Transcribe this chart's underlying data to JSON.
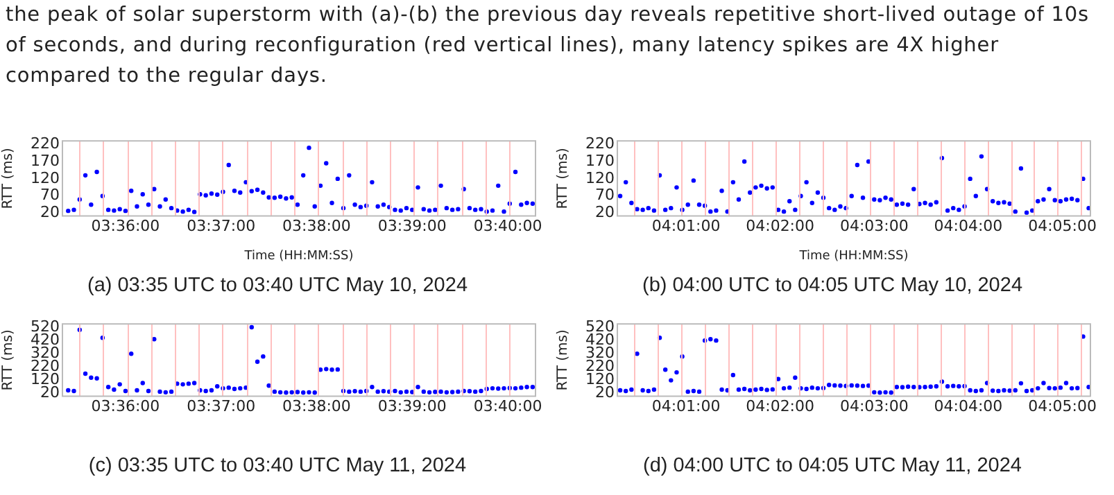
{
  "chart_data": [
    {
      "type": "scatter",
      "title": "(a) 03:35 UTC to 03:40 UTC May 10, 2024",
      "xlabel": "Time (HH:MM:SS)",
      "ylabel": "RTT (ms)",
      "marker": "circle",
      "annotations": [
        "the peak of solar superstorm with (a)-(b) the previous day reveals repetitive short-lived outage of 10s of seconds, and during reconfiguration (red vertical lines), many latency spikes are 4X higher compared to the regular days."
      ],
      "xlim": [
        3.589,
        3.6715
      ],
      "xticks": [
        {
          "value": 3.6,
          "label": "03:36:00"
        },
        {
          "value": 3.61667,
          "label": "03:37:00"
        },
        {
          "value": 3.63333,
          "label": "03:38:00"
        },
        {
          "value": 3.65,
          "label": "03:39:00"
        },
        {
          "value": 3.66667,
          "label": "03:40:00"
        }
      ],
      "ylim": [
        12,
        230
      ],
      "yticks": [
        20,
        70,
        120,
        170,
        220
      ],
      "ref_lines": [
        {
          "axis": "x",
          "value": 3.59194,
          "color": "#ffc0c0"
        },
        {
          "axis": "x",
          "value": 3.59611,
          "color": "#ffc0c0"
        },
        {
          "axis": "x",
          "value": 3.60028,
          "color": "#ffc0c0"
        },
        {
          "axis": "x",
          "value": 3.60444,
          "color": "#ffc0c0"
        },
        {
          "axis": "x",
          "value": 3.60861,
          "color": "#ffc0c0"
        },
        {
          "axis": "x",
          "value": 3.61278,
          "color": "#ffc0c0"
        },
        {
          "axis": "x",
          "value": 3.61694,
          "color": "#ffc0c0"
        },
        {
          "axis": "x",
          "value": 3.62111,
          "color": "#ffc0c0"
        },
        {
          "axis": "x",
          "value": 3.62528,
          "color": "#ffc0c0"
        },
        {
          "axis": "x",
          "value": 3.62944,
          "color": "#ffc0c0"
        },
        {
          "axis": "x",
          "value": 3.63361,
          "color": "#ffc0c0"
        },
        {
          "axis": "x",
          "value": 3.63778,
          "color": "#ffc0c0"
        },
        {
          "axis": "x",
          "value": 3.64194,
          "color": "#ffc0c0"
        },
        {
          "axis": "x",
          "value": 3.64611,
          "color": "#ffc0c0"
        },
        {
          "axis": "x",
          "value": 3.65028,
          "color": "#ffc0c0"
        },
        {
          "axis": "x",
          "value": 3.65444,
          "color": "#ffc0c0"
        },
        {
          "axis": "x",
          "value": 3.65861,
          "color": "#ffc0c0"
        },
        {
          "axis": "x",
          "value": 3.66278,
          "color": "#ffc0c0"
        },
        {
          "axis": "x",
          "value": 3.66694,
          "color": "#ffc0c0"
        }
      ],
      "series": [
        {
          "color": "#0000ff",
          "x": [
            3.59,
            3.591,
            3.592,
            3.593,
            3.594,
            3.595,
            3.596,
            3.597,
            3.598,
            3.599,
            3.6,
            3.601,
            3.602,
            3.603,
            3.604,
            3.605,
            3.606,
            3.607,
            3.608,
            3.609,
            3.61,
            3.611,
            3.612,
            3.613,
            3.614,
            3.615,
            3.616,
            3.617,
            3.618,
            3.619,
            3.62,
            3.621,
            3.622,
            3.623,
            3.624,
            3.625,
            3.626,
            3.627,
            3.628,
            3.629,
            3.63,
            3.631,
            3.632,
            3.633,
            3.634,
            3.635,
            3.636,
            3.637,
            3.638,
            3.639,
            3.64,
            3.641,
            3.642,
            3.643,
            3.644,
            3.645,
            3.646,
            3.647,
            3.648,
            3.649,
            3.65,
            3.651,
            3.652,
            3.653,
            3.654,
            3.655,
            3.656,
            3.657,
            3.658,
            3.659,
            3.66,
            3.661,
            3.662,
            3.663,
            3.664,
            3.665,
            3.666,
            3.667,
            3.668,
            3.669,
            3.67,
            3.671
          ],
          "values": [
            27,
            30,
            60,
            130,
            45,
            140,
            70,
            30,
            28,
            32,
            27,
            85,
            40,
            75,
            45,
            90,
            40,
            60,
            35,
            28,
            25,
            30,
            24,
            75,
            72,
            77,
            74,
            82,
            160,
            85,
            80,
            110,
            84,
            88,
            80,
            66,
            65,
            68,
            63,
            66,
            45,
            130,
            210,
            40,
            100,
            165,
            50,
            120,
            35,
            130,
            45,
            38,
            42,
            110,
            40,
            45,
            38,
            30,
            28,
            35,
            30,
            95,
            32,
            28,
            30,
            100,
            35,
            30,
            32,
            90,
            35,
            30,
            32,
            25,
            28,
            100,
            25,
            48,
            140,
            45,
            50,
            48
          ]
        }
      ]
    },
    {
      "type": "scatter",
      "title": "(b) 04:00 UTC to 04:05 UTC May 10, 2024",
      "xlabel": "Time (HH:MM:SS)",
      "ylabel": "RTT (ms)",
      "marker": "circle",
      "xlim": [
        4.0045,
        4.0883
      ],
      "xticks": [
        {
          "value": 4.01667,
          "label": "04:01:00"
        },
        {
          "value": 4.03333,
          "label": "04:02:00"
        },
        {
          "value": 4.05,
          "label": "04:03:00"
        },
        {
          "value": 4.06667,
          "label": "04:04:00"
        },
        {
          "value": 4.08333,
          "label": "04:05:00"
        }
      ],
      "ylim": [
        12,
        230
      ],
      "yticks": [
        20,
        70,
        120,
        170,
        220
      ],
      "ref_lines": [
        {
          "axis": "x",
          "value": 4.0075,
          "color": "#ffc0c0"
        },
        {
          "axis": "x",
          "value": 4.01167,
          "color": "#ffc0c0"
        },
        {
          "axis": "x",
          "value": 4.01583,
          "color": "#ffc0c0"
        },
        {
          "axis": "x",
          "value": 4.02,
          "color": "#ffc0c0"
        },
        {
          "axis": "x",
          "value": 4.02417,
          "color": "#ffc0c0"
        },
        {
          "axis": "x",
          "value": 4.02833,
          "color": "#ffc0c0"
        },
        {
          "axis": "x",
          "value": 4.0325,
          "color": "#ffc0c0"
        },
        {
          "axis": "x",
          "value": 4.03667,
          "color": "#ffc0c0"
        },
        {
          "axis": "x",
          "value": 4.04083,
          "color": "#ffc0c0"
        },
        {
          "axis": "x",
          "value": 4.045,
          "color": "#ffc0c0"
        },
        {
          "axis": "x",
          "value": 4.04917,
          "color": "#ffc0c0"
        },
        {
          "axis": "x",
          "value": 4.05333,
          "color": "#ffc0c0"
        },
        {
          "axis": "x",
          "value": 4.0575,
          "color": "#ffc0c0"
        },
        {
          "axis": "x",
          "value": 4.06167,
          "color": "#ffc0c0"
        },
        {
          "axis": "x",
          "value": 4.06583,
          "color": "#ffc0c0"
        },
        {
          "axis": "x",
          "value": 4.07,
          "color": "#ffc0c0"
        },
        {
          "axis": "x",
          "value": 4.07417,
          "color": "#ffc0c0"
        },
        {
          "axis": "x",
          "value": 4.07833,
          "color": "#ffc0c0"
        },
        {
          "axis": "x",
          "value": 4.0825,
          "color": "#ffc0c0"
        },
        {
          "axis": "x",
          "value": 4.08667,
          "color": "#ffc0c0"
        }
      ],
      "series": [
        {
          "color": "#0000ff",
          "x": [
            4.005,
            4.006,
            4.007,
            4.008,
            4.009,
            4.01,
            4.011,
            4.012,
            4.013,
            4.014,
            4.015,
            4.016,
            4.017,
            4.018,
            4.019,
            4.02,
            4.021,
            4.022,
            4.023,
            4.024,
            4.025,
            4.026,
            4.027,
            4.028,
            4.029,
            4.03,
            4.031,
            4.032,
            4.033,
            4.034,
            4.035,
            4.036,
            4.037,
            4.038,
            4.039,
            4.04,
            4.041,
            4.042,
            4.043,
            4.044,
            4.045,
            4.046,
            4.047,
            4.048,
            4.049,
            4.05,
            4.051,
            4.052,
            4.053,
            4.054,
            4.055,
            4.056,
            4.057,
            4.058,
            4.059,
            4.06,
            4.061,
            4.062,
            4.063,
            4.064,
            4.065,
            4.066,
            4.067,
            4.068,
            4.069,
            4.07,
            4.071,
            4.072,
            4.073,
            4.074,
            4.075,
            4.076,
            4.077,
            4.078,
            4.079,
            4.08,
            4.081,
            4.082,
            4.083,
            4.084,
            4.085,
            4.086,
            4.087,
            4.088
          ],
          "values": [
            70,
            110,
            50,
            32,
            30,
            35,
            28,
            130,
            30,
            35,
            95,
            30,
            45,
            115,
            45,
            42,
            25,
            28,
            85,
            25,
            110,
            60,
            170,
            80,
            95,
            100,
            92,
            95,
            30,
            25,
            55,
            30,
            70,
            110,
            50,
            80,
            65,
            35,
            30,
            40,
            35,
            70,
            160,
            65,
            170,
            60,
            58,
            65,
            60,
            45,
            48,
            45,
            90,
            47,
            50,
            45,
            52,
            180,
            28,
            35,
            30,
            40,
            120,
            70,
            185,
            90,
            55,
            50,
            52,
            48,
            25,
            150,
            22,
            28,
            55,
            60,
            90,
            58,
            55,
            60,
            62,
            58,
            120,
            35
          ]
        }
      ]
    },
    {
      "type": "scatter",
      "title": "(c) 03:35 UTC to 03:40 UTC May 11, 2024",
      "ylabel": "RTT (ms)",
      "marker": "circle",
      "xlim": [
        3.589,
        3.6715
      ],
      "xticks": [
        {
          "value": 3.6,
          "label": "03:36:00"
        },
        {
          "value": 3.61667,
          "label": "03:37:00"
        },
        {
          "value": 3.63333,
          "label": "03:38:00"
        },
        {
          "value": 3.65,
          "label": "03:39:00"
        },
        {
          "value": 3.66667,
          "label": "03:40:00"
        }
      ],
      "ylim": [
        0,
        545
      ],
      "yticks": [
        20,
        120,
        220,
        320,
        420,
        520
      ],
      "ref_lines": [
        {
          "axis": "x",
          "value": 3.59194,
          "color": "#ffc0c0"
        },
        {
          "axis": "x",
          "value": 3.59611,
          "color": "#ffc0c0"
        },
        {
          "axis": "x",
          "value": 3.60028,
          "color": "#ffc0c0"
        },
        {
          "axis": "x",
          "value": 3.60444,
          "color": "#ffc0c0"
        },
        {
          "axis": "x",
          "value": 3.60861,
          "color": "#ffc0c0"
        },
        {
          "axis": "x",
          "value": 3.61278,
          "color": "#ffc0c0"
        },
        {
          "axis": "x",
          "value": 3.61694,
          "color": "#ffc0c0"
        },
        {
          "axis": "x",
          "value": 3.62111,
          "color": "#ffc0c0"
        },
        {
          "axis": "x",
          "value": 3.62528,
          "color": "#ffc0c0"
        },
        {
          "axis": "x",
          "value": 3.62944,
          "color": "#ffc0c0"
        },
        {
          "axis": "x",
          "value": 3.63361,
          "color": "#ffc0c0"
        },
        {
          "axis": "x",
          "value": 3.63778,
          "color": "#ffc0c0"
        },
        {
          "axis": "x",
          "value": 3.64194,
          "color": "#ffc0c0"
        },
        {
          "axis": "x",
          "value": 3.64611,
          "color": "#ffc0c0"
        },
        {
          "axis": "x",
          "value": 3.65028,
          "color": "#ffc0c0"
        },
        {
          "axis": "x",
          "value": 3.65444,
          "color": "#ffc0c0"
        },
        {
          "axis": "x",
          "value": 3.65861,
          "color": "#ffc0c0"
        },
        {
          "axis": "x",
          "value": 3.66278,
          "color": "#ffc0c0"
        },
        {
          "axis": "x",
          "value": 3.66694,
          "color": "#ffc0c0"
        }
      ],
      "series": [
        {
          "color": "#0000ff",
          "x": [
            3.59,
            3.591,
            3.592,
            3.593,
            3.594,
            3.595,
            3.596,
            3.597,
            3.598,
            3.599,
            3.6,
            3.601,
            3.602,
            3.603,
            3.604,
            3.605,
            3.606,
            3.607,
            3.608,
            3.609,
            3.61,
            3.611,
            3.612,
            3.613,
            3.614,
            3.615,
            3.616,
            3.617,
            3.618,
            3.619,
            3.62,
            3.621,
            3.622,
            3.623,
            3.624,
            3.625,
            3.626,
            3.627,
            3.628,
            3.629,
            3.63,
            3.631,
            3.632,
            3.633,
            3.634,
            3.635,
            3.636,
            3.637,
            3.638,
            3.639,
            3.64,
            3.641,
            3.642,
            3.643,
            3.644,
            3.645,
            3.646,
            3.647,
            3.648,
            3.649,
            3.65,
            3.651,
            3.652,
            3.653,
            3.654,
            3.655,
            3.656,
            3.657,
            3.658,
            3.659,
            3.66,
            3.661,
            3.662,
            3.663,
            3.664,
            3.665,
            3.666,
            3.667,
            3.668,
            3.669,
            3.67,
            3.671
          ],
          "values": [
            45,
            40,
            500,
            170,
            140,
            135,
            440,
            70,
            50,
            90,
            40,
            320,
            45,
            100,
            40,
            430,
            35,
            30,
            35,
            95,
            90,
            95,
            100,
            45,
            40,
            45,
            75,
            60,
            65,
            55,
            60,
            65,
            520,
            260,
            300,
            80,
            35,
            30,
            28,
            30,
            32,
            28,
            30,
            28,
            200,
            205,
            200,
            202,
            40,
            35,
            38,
            35,
            40,
            70,
            35,
            38,
            35,
            40,
            30,
            35,
            32,
            70,
            35,
            30,
            33,
            35,
            30,
            32,
            35,
            40,
            38,
            35,
            40,
            55,
            60,
            58,
            60,
            62,
            60,
            65,
            70,
            70
          ]
        }
      ]
    },
    {
      "type": "scatter",
      "title": "(d) 04:00 UTC to 04:05 UTC May 11, 2024",
      "ylabel": "RTT (ms)",
      "marker": "circle",
      "xlim": [
        4.0045,
        4.0883
      ],
      "xticks": [
        {
          "value": 4.01667,
          "label": "04:01:00"
        },
        {
          "value": 4.03333,
          "label": "04:02:00"
        },
        {
          "value": 4.05,
          "label": "04:03:00"
        },
        {
          "value": 4.06667,
          "label": "04:04:00"
        },
        {
          "value": 4.08333,
          "label": "04:05:00"
        }
      ],
      "ylim": [
        0,
        545
      ],
      "yticks": [
        20,
        120,
        220,
        320,
        420,
        520
      ],
      "ref_lines": [
        {
          "axis": "x",
          "value": 4.0075,
          "color": "#ffc0c0"
        },
        {
          "axis": "x",
          "value": 4.01167,
          "color": "#ffc0c0"
        },
        {
          "axis": "x",
          "value": 4.01583,
          "color": "#ffc0c0"
        },
        {
          "axis": "x",
          "value": 4.02,
          "color": "#ffc0c0"
        },
        {
          "axis": "x",
          "value": 4.02417,
          "color": "#ffc0c0"
        },
        {
          "axis": "x",
          "value": 4.02833,
          "color": "#ffc0c0"
        },
        {
          "axis": "x",
          "value": 4.0325,
          "color": "#ffc0c0"
        },
        {
          "axis": "x",
          "value": 4.03667,
          "color": "#ffc0c0"
        },
        {
          "axis": "x",
          "value": 4.04083,
          "color": "#ffc0c0"
        },
        {
          "axis": "x",
          "value": 4.045,
          "color": "#ffc0c0"
        },
        {
          "axis": "x",
          "value": 4.04917,
          "color": "#ffc0c0"
        },
        {
          "axis": "x",
          "value": 4.05333,
          "color": "#ffc0c0"
        },
        {
          "axis": "x",
          "value": 4.0575,
          "color": "#ffc0c0"
        },
        {
          "axis": "x",
          "value": 4.06167,
          "color": "#ffc0c0"
        },
        {
          "axis": "x",
          "value": 4.06583,
          "color": "#ffc0c0"
        },
        {
          "axis": "x",
          "value": 4.07,
          "color": "#ffc0c0"
        },
        {
          "axis": "x",
          "value": 4.07417,
          "color": "#ffc0c0"
        },
        {
          "axis": "x",
          "value": 4.07833,
          "color": "#ffc0c0"
        },
        {
          "axis": "x",
          "value": 4.0825,
          "color": "#ffc0c0"
        },
        {
          "axis": "x",
          "value": 4.08667,
          "color": "#ffc0c0"
        }
      ],
      "series": [
        {
          "color": "#0000ff",
          "x": [
            4.005,
            4.006,
            4.007,
            4.008,
            4.009,
            4.01,
            4.011,
            4.012,
            4.013,
            4.014,
            4.015,
            4.016,
            4.017,
            4.018,
            4.019,
            4.02,
            4.021,
            4.022,
            4.023,
            4.024,
            4.025,
            4.026,
            4.027,
            4.028,
            4.029,
            4.03,
            4.031,
            4.032,
            4.033,
            4.034,
            4.035,
            4.036,
            4.037,
            4.038,
            4.039,
            4.04,
            4.041,
            4.042,
            4.043,
            4.044,
            4.045,
            4.046,
            4.047,
            4.048,
            4.049,
            4.05,
            4.051,
            4.052,
            4.053,
            4.054,
            4.055,
            4.056,
            4.057,
            4.058,
            4.059,
            4.06,
            4.061,
            4.062,
            4.063,
            4.064,
            4.065,
            4.066,
            4.067,
            4.068,
            4.069,
            4.07,
            4.071,
            4.072,
            4.073,
            4.074,
            4.075,
            4.076,
            4.077,
            4.078,
            4.079,
            4.08,
            4.081,
            4.082,
            4.083,
            4.084,
            4.085,
            4.086,
            4.087,
            4.088
          ],
          "values": [
            45,
            40,
            50,
            320,
            45,
            40,
            50,
            440,
            200,
            120,
            180,
            300,
            35,
            40,
            35,
            420,
            430,
            420,
            50,
            45,
            160,
            50,
            55,
            45,
            50,
            55,
            48,
            52,
            130,
            60,
            65,
            140,
            60,
            55,
            65,
            60,
            62,
            85,
            82,
            80,
            78,
            82,
            80,
            78,
            80,
            30,
            28,
            30,
            28,
            70,
            68,
            72,
            70,
            68,
            70,
            72,
            75,
            110,
            75,
            78,
            75,
            76,
            45,
            40,
            45,
            100,
            42,
            40,
            45,
            42,
            45,
            98,
            40,
            45,
            60,
            100,
            62,
            60,
            65,
            100,
            60,
            62,
            450,
            70
          ]
        }
      ]
    }
  ]
}
